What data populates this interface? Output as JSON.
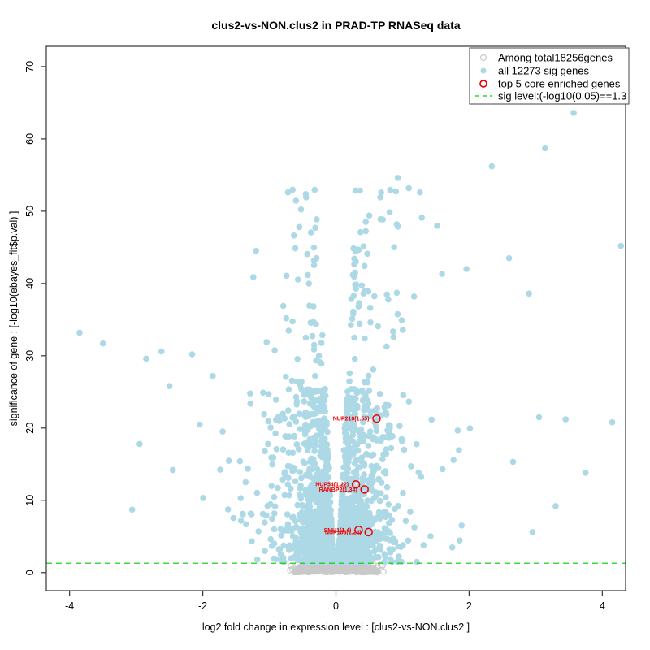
{
  "chart_data": {
    "type": "scatter",
    "subtype": "volcano-plot",
    "title": "clus2-vs-NON.clus2 in PRAD-TP RNASeq data",
    "xlabel": "log2 fold change in expression level : [clus2-vs-NON.clus2 ]",
    "ylabel": "significance of gene : [-log10(ebayes_fit$p.val) ]",
    "xlim": [
      -4.35,
      4.35
    ],
    "ylim": [
      -2.5,
      72.8
    ],
    "x_ticks": [
      -4,
      -2,
      0,
      2,
      4
    ],
    "y_ticks": [
      0,
      10,
      20,
      30,
      40,
      50,
      60,
      70
    ],
    "grid": false,
    "colors": {
      "nonsig": "#C9C9C9",
      "sig": "#ADD8E6",
      "top5": "#EE0000",
      "sig_line": "#00CC00",
      "axis": "#333333"
    },
    "sig_level_line": {
      "y": 1.3,
      "style": "dashed",
      "label": "sig level:(-log10(0.05)==1.3"
    },
    "legend": {
      "position": "top-right",
      "items": [
        {
          "symbol": "open-circle",
          "color": "#C9C9C9",
          "label": "Among total18256genes"
        },
        {
          "symbol": "filled-circle",
          "color": "#ADD8E6",
          "label": "all 12273 sig genes"
        },
        {
          "symbol": "open-circle-bold",
          "color": "#EE0000",
          "label": "top 5 core enriched genes"
        },
        {
          "symbol": "dashed-line",
          "color": "#00CC00",
          "label": "sig level:(-log10(0.05)==1.3"
        }
      ]
    },
    "series": [
      {
        "name": "Among total18256genes",
        "role": "nonsig_cloud",
        "marker": "open-circle",
        "total_genes": 18256,
        "cloud": {
          "seed": 7,
          "count": 750,
          "x_halfwidth": 0.62,
          "y_top": 1.38,
          "y_bottom": 0.06,
          "fringe_count": 16
        }
      },
      {
        "name": "all 12273 sig genes",
        "role": "sig_cloud",
        "marker": "filled-circle",
        "sig_genes": 12273,
        "cloud": {
          "seed": 1337,
          "count": 2400,
          "gap_base": 0.03,
          "gap_slope": 0.005,
          "y_min": 1.45,
          "right_fraction": 0.52
        },
        "notable_points": [
          [
            -3.85,
            33.2
          ],
          [
            -3.5,
            31.7
          ],
          [
            -2.85,
            29.6
          ],
          [
            -2.62,
            30.6
          ],
          [
            -2.16,
            30.2
          ],
          [
            -2.5,
            25.8
          ],
          [
            -1.85,
            27.2
          ],
          [
            -0.72,
            52.6
          ],
          [
            -0.55,
            47.8
          ],
          [
            -1.2,
            44.5
          ],
          [
            0.5,
            49.4
          ],
          [
            0.67,
            48.9
          ],
          [
            0.93,
            54.6
          ],
          [
            1.26,
            52.6
          ],
          [
            1.29,
            49.1
          ],
          [
            1.96,
            42.0
          ],
          [
            2.34,
            56.2
          ],
          [
            2.6,
            43.5
          ],
          [
            2.9,
            38.6
          ],
          [
            3.14,
            58.7
          ],
          [
            3.57,
            63.6
          ],
          [
            4.28,
            45.2
          ],
          [
            3.05,
            21.5
          ],
          [
            3.45,
            21.2
          ],
          [
            4.15,
            20.8
          ],
          [
            3.75,
            13.8
          ],
          [
            3.3,
            9.2
          ],
          [
            2.95,
            5.6
          ],
          [
            -3.06,
            8.7
          ],
          [
            -2.45,
            14.2
          ]
        ]
      },
      {
        "name": "top 5 core enriched genes",
        "role": "highlight",
        "marker": "open-circle",
        "points": [
          {
            "label": "NUP210(1.55)",
            "x": 0.61,
            "y": 21.3
          },
          {
            "label": "NUP54(1.22)",
            "x": 0.3,
            "y": 12.2
          },
          {
            "label": "RANBP2(1.34)",
            "x": 0.43,
            "y": 11.5
          },
          {
            "label": "SMU1(1.4)",
            "x": 0.34,
            "y": 5.9
          },
          {
            "label": "NUP153(1.24)",
            "x": 0.49,
            "y": 5.6
          }
        ]
      }
    ]
  }
}
